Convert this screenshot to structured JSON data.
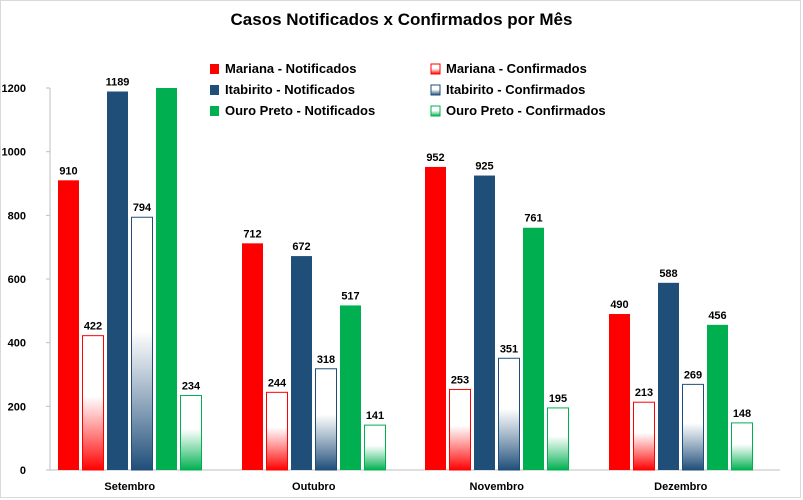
{
  "chart_data": {
    "type": "bar",
    "title": "Casos Notificados x Confirmados por Mês",
    "categories": [
      "Setembro",
      "Outubro",
      "Novembro",
      "Dezembro"
    ],
    "ylim": [
      0,
      1200
    ],
    "yticks": [
      0,
      200,
      400,
      600,
      800,
      1000,
      1200
    ],
    "grid": false,
    "legend_position": "top-center",
    "series": [
      {
        "name": "Mariana - Notificados",
        "values": [
          910,
          712,
          952,
          490
        ],
        "color": "#ff0000",
        "style": "solid"
      },
      {
        "name": "Mariana - Confirmados",
        "values": [
          422,
          244,
          253,
          213
        ],
        "color": "#ff0000",
        "style": "gradient"
      },
      {
        "name": "Itabirito - Notificados",
        "values": [
          1189,
          672,
          925,
          588
        ],
        "color": "#1f4e79",
        "style": "solid"
      },
      {
        "name": "Itabirito - Confirmados",
        "values": [
          794,
          318,
          351,
          269
        ],
        "color": "#1f4e79",
        "style": "gradient"
      },
      {
        "name": "Ouro Preto - Notificados",
        "values": [
          1200,
          517,
          761,
          456
        ],
        "color": "#00b050",
        "style": "solid"
      },
      {
        "name": "Ouro Preto - Confirmados",
        "values": [
          234,
          141,
          195,
          148
        ],
        "color": "#00b050",
        "style": "gradient"
      }
    ],
    "data_labels": [
      [
        "910",
        "712",
        "952",
        "490"
      ],
      [
        "422",
        "244",
        "253",
        "213"
      ],
      [
        "1189",
        "672",
        "925",
        "588"
      ],
      [
        "794",
        "318",
        "351",
        "269"
      ],
      [
        "",
        "517",
        "761",
        "456"
      ],
      [
        "234",
        "141",
        "195",
        "148"
      ]
    ]
  }
}
